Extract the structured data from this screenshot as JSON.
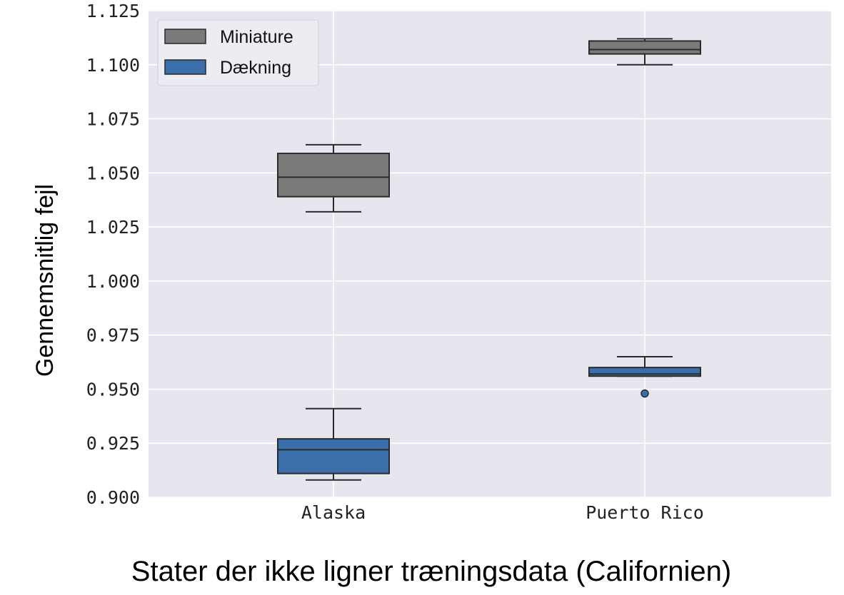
{
  "chart_data": {
    "type": "boxplot",
    "title": "",
    "xlabel": "Stater der ikke ligner træningsdata (Californien)",
    "ylabel": "Gennemsnitlig fejl",
    "ylim": [
      0.9,
      1.125
    ],
    "yticks": [
      "0.900",
      "0.925",
      "0.950",
      "0.975",
      "1.000",
      "1.025",
      "1.050",
      "1.075",
      "1.100",
      "1.125"
    ],
    "categories": [
      "Alaska",
      "Puerto Rico"
    ],
    "grid": true,
    "legend_position": "top-left",
    "series": [
      {
        "name": "Miniature",
        "color": "#7a7a7a",
        "boxes": [
          {
            "category": "Alaska",
            "whisker_low": 1.032,
            "q1": 1.039,
            "median": 1.048,
            "q3": 1.059,
            "whisker_high": 1.063,
            "outliers": []
          },
          {
            "category": "Puerto Rico",
            "whisker_low": 1.1,
            "q1": 1.105,
            "median": 1.107,
            "q3": 1.111,
            "whisker_high": 1.112,
            "outliers": []
          }
        ]
      },
      {
        "name": "Dækning",
        "color": "#3a6fab",
        "boxes": [
          {
            "category": "Alaska",
            "whisker_low": 0.908,
            "q1": 0.911,
            "median": 0.922,
            "q3": 0.927,
            "whisker_high": 0.941,
            "outliers": []
          },
          {
            "category": "Puerto Rico",
            "whisker_low": 0.956,
            "q1": 0.956,
            "median": 0.957,
            "q3": 0.96,
            "whisker_high": 0.965,
            "outliers": [
              0.948
            ]
          }
        ]
      }
    ]
  }
}
